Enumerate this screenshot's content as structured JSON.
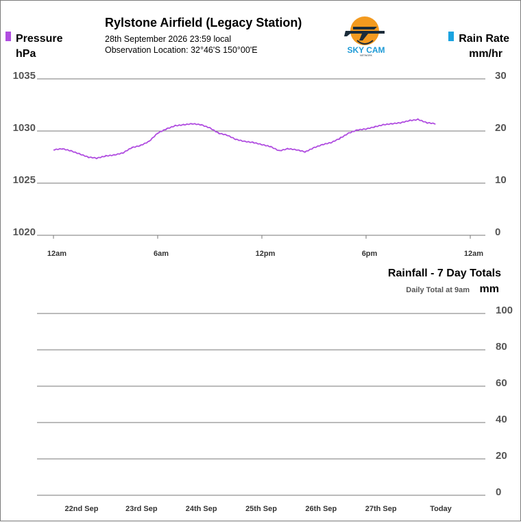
{
  "header": {
    "title": "Rylstone Airfield (Legacy Station)",
    "datetime": "28th September 2026  23:59 local",
    "location": "Observation Location:   32°46'S 150°00'E"
  },
  "logo": {
    "text": "SKY CAM",
    "subtext": "NETWORK",
    "icon": "airplane-sun-logo-icon",
    "colors": {
      "sun": "#f39a1f",
      "text": "#1d9ad6",
      "plane": "#1b2c3a"
    }
  },
  "chart_data": [
    {
      "type": "line",
      "left_axis": {
        "title": "Pressure",
        "unit": "hPa",
        "ylim": [
          1020,
          1035
        ],
        "ticks": [
          "1035",
          "1030",
          "1025",
          "1020"
        ],
        "legend_color": "#b04de0"
      },
      "right_axis": {
        "title": "Rain Rate",
        "unit": "mm/hr",
        "ylim": [
          0,
          30
        ],
        "ticks": [
          "30",
          "20",
          "10",
          "0"
        ],
        "legend_color": "#1aa3e0"
      },
      "x_ticks": [
        "12am",
        "6am",
        "12pm",
        "6pm",
        "12am"
      ],
      "x_unit": "hours",
      "xlim": [
        0,
        24
      ],
      "grid": true,
      "series": [
        {
          "axis": "left",
          "color": "#b04de0",
          "x": [
            0,
            0.5,
            1,
            1.5,
            2,
            2.5,
            3,
            3.5,
            4,
            4.5,
            5,
            5.5,
            6,
            6.5,
            7,
            7.5,
            8,
            8.5,
            9,
            9.5,
            10,
            10.5,
            11,
            11.5,
            12,
            12.5,
            13,
            13.5,
            14,
            14.5,
            15,
            15.5,
            16,
            16.5,
            17,
            17.5,
            18,
            18.5,
            19,
            19.5,
            20,
            20.5,
            21,
            21.5,
            22,
            22.5,
            23,
            23.5,
            24
          ],
          "y": [
            1028.2,
            1028.3,
            1028.1,
            1027.8,
            1027.5,
            1027.4,
            1027.6,
            1027.7,
            1027.9,
            1028.4,
            1028.6,
            1029.0,
            1029.8,
            1030.2,
            1030.5,
            1030.6,
            1030.7,
            1030.6,
            1030.3,
            1029.8,
            1029.6,
            1029.2,
            1029.0,
            1028.9,
            1028.7,
            1028.5,
            1028.1,
            1028.3,
            1028.2,
            1028.0,
            1028.4,
            1028.7,
            1028.9,
            1029.3,
            1029.8,
            1030.1,
            1030.2,
            1030.4,
            1030.6,
            1030.7,
            1030.8,
            1031.0,
            1031.1,
            1030.8,
            1030.7,
            null,
            null,
            null,
            null
          ]
        }
      ]
    },
    {
      "type": "bar",
      "title": "Rainfall - 7 Day Totals",
      "subtitle": "Daily Total at 9am",
      "right_axis": {
        "unit": "mm",
        "ylim": [
          0,
          100
        ],
        "ticks": [
          "100",
          "80",
          "60",
          "40",
          "20",
          "0"
        ]
      },
      "categories": [
        "22nd Sep",
        "23rd Sep",
        "24th Sep",
        "25th Sep",
        "26th Sep",
        "27th Sep",
        "Today"
      ],
      "values": [
        0,
        0,
        0,
        0,
        0,
        0,
        0
      ],
      "grid": true
    }
  ]
}
